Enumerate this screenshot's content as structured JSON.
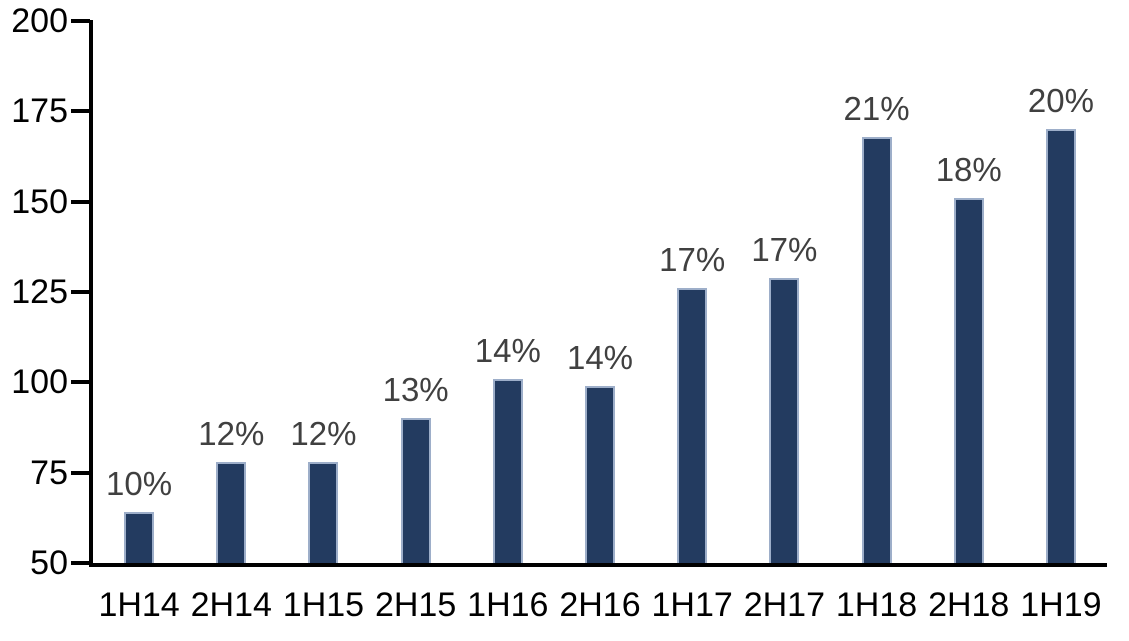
{
  "chart_data": {
    "type": "bar",
    "title": "",
    "xlabel": "",
    "ylabel": "",
    "categories": [
      "1H14",
      "2H14",
      "1H15",
      "2H15",
      "1H16",
      "2H16",
      "1H17",
      "2H17",
      "1H18",
      "2H18",
      "1H19"
    ],
    "values": [
      64,
      78,
      78,
      90,
      101,
      99,
      126,
      129,
      168,
      151,
      170
    ],
    "bar_labels": [
      "10%",
      "12%",
      "12%",
      "13%",
      "14%",
      "14%",
      "17%",
      "17%",
      "21%",
      "18%",
      "20%"
    ],
    "ylim": [
      50,
      200
    ],
    "yticks": [
      50,
      75,
      100,
      125,
      150,
      175,
      200
    ],
    "grid": false,
    "legend_position": "none",
    "colors": {
      "bar_fill": "#233B60",
      "bar_border": "#9DAEC9",
      "data_label": "#404040",
      "axis": "#000000",
      "background": "#FFFFFF"
    }
  }
}
